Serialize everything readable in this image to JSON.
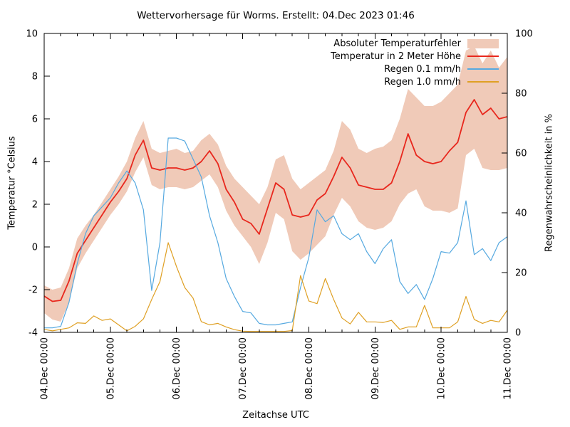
{
  "chart_data": {
    "type": "line",
    "title": "Wettervorhersage für Worms. Erstellt: 04.Dec 2023 01:46",
    "legend_position": "top-right-inside",
    "grid": false,
    "x_unit": "hours since 04.Dec 2023 00:00 UTC",
    "x_range_hours": [
      0,
      168
    ],
    "x_step_hours": 3,
    "axes": {
      "x": {
        "label": "Zeitachse UTC",
        "major_tick_hours": 24,
        "minor_tick_hours": 6,
        "tick_labels": [
          "04.Dec 00:00",
          "05.Dec 00:00",
          "06.Dec 00:00",
          "07.Dec 00:00",
          "08.Dec 00:00",
          "09.Dec 00:00",
          "10.Dec 00:00",
          "11.Dec 00:00"
        ]
      },
      "y_left": {
        "label": "Temperatur °Celsius",
        "range": [
          -4,
          10
        ],
        "ticks": [
          -4,
          -2,
          0,
          2,
          4,
          6,
          8,
          10
        ]
      },
      "y_right": {
        "label": "Regenwahrscheinlichkeit in %",
        "range": [
          0,
          100
        ],
        "ticks": [
          0,
          20,
          40,
          60,
          80,
          100
        ]
      }
    },
    "series": [
      {
        "name": "Absoluter Temperaturfehler",
        "type": "band",
        "axis": "left",
        "color": "#f0cab8",
        "upper": [
          -1.8,
          -2.0,
          -1.9,
          -1.0,
          0.4,
          1.0,
          1.5,
          2.1,
          2.7,
          3.3,
          4.0,
          5.1,
          5.9,
          4.6,
          4.4,
          4.5,
          4.6,
          4.4,
          4.5,
          5.0,
          5.3,
          4.8,
          3.8,
          3.2,
          2.8,
          2.4,
          2.0,
          2.8,
          4.1,
          4.3,
          3.2,
          2.7,
          3.0,
          3.3,
          3.6,
          4.5,
          5.9,
          5.5,
          4.6,
          4.4,
          4.6,
          4.7,
          5.0,
          6.0,
          7.4,
          7.0,
          6.6,
          6.6,
          6.8,
          7.2,
          7.6,
          9.2,
          9.4,
          8.6,
          9.2,
          8.4,
          8.9
        ],
        "lower": [
          -3.1,
          -3.4,
          -3.5,
          -2.6,
          -1.0,
          -0.3,
          0.3,
          0.9,
          1.5,
          2.0,
          2.6,
          3.5,
          4.2,
          2.9,
          2.7,
          2.8,
          2.8,
          2.7,
          2.8,
          3.1,
          3.4,
          2.8,
          1.7,
          1.0,
          0.5,
          0.0,
          -0.8,
          0.2,
          1.6,
          1.3,
          -0.2,
          -0.6,
          -0.3,
          0.1,
          0.5,
          1.5,
          2.3,
          1.9,
          1.2,
          0.9,
          0.8,
          0.9,
          1.2,
          2.0,
          2.5,
          2.7,
          1.9,
          1.7,
          1.7,
          1.6,
          1.8,
          4.3,
          4.6,
          3.7,
          3.6,
          3.6,
          3.7
        ]
      },
      {
        "name": "Temperatur in 2 Meter Höhe",
        "type": "line",
        "axis": "left",
        "color": "#e8271d",
        "width": 1.8,
        "values": [
          -2.3,
          -2.55,
          -2.5,
          -1.6,
          -0.3,
          0.3,
          0.9,
          1.5,
          2.1,
          2.6,
          3.2,
          4.3,
          5.0,
          3.7,
          3.6,
          3.7,
          3.7,
          3.6,
          3.7,
          4.0,
          4.5,
          3.9,
          2.7,
          2.1,
          1.3,
          1.1,
          0.6,
          1.8,
          3.0,
          2.7,
          1.5,
          1.4,
          1.5,
          2.2,
          2.5,
          3.3,
          4.2,
          3.7,
          2.9,
          2.8,
          2.7,
          2.7,
          3.0,
          4.0,
          5.3,
          4.3,
          4.0,
          3.9,
          4.0,
          4.5,
          4.9,
          6.3,
          6.9,
          6.2,
          6.5,
          6.0,
          6.1
        ]
      },
      {
        "name": "Regen 0.1 mm/h",
        "type": "line",
        "axis": "right",
        "color": "#56a9e0",
        "width": 1.2,
        "values": [
          1.5,
          1.5,
          2,
          10,
          23,
          33,
          39,
          42,
          45,
          50,
          54,
          50,
          41,
          14,
          30,
          65,
          65,
          64,
          58,
          52,
          39,
          30,
          18,
          12,
          7,
          6.5,
          3,
          2.5,
          2.5,
          3,
          3.5,
          15,
          25,
          41,
          37,
          39,
          33,
          31,
          33,
          27,
          23,
          28,
          31,
          17,
          13,
          16,
          11,
          18,
          27,
          26.5,
          30,
          44,
          26,
          28,
          24,
          30,
          32
        ]
      },
      {
        "name": "Regen 1.0 mm/h",
        "type": "line",
        "axis": "right",
        "color": "#dfa024",
        "width": 1.2,
        "values": [
          1,
          0.5,
          1,
          1.5,
          3.2,
          3,
          5.5,
          4,
          4.5,
          2.5,
          0.5,
          2,
          4.5,
          11,
          17,
          30,
          22,
          15,
          11.5,
          3.6,
          2.5,
          3,
          1.8,
          0.9,
          0.4,
          0.3,
          0.3,
          0.3,
          0.3,
          0.3,
          0.6,
          19,
          10.5,
          9.6,
          18,
          11,
          4.8,
          2.8,
          6.7,
          3.5,
          3.5,
          3.3,
          4,
          1,
          1.8,
          1.8,
          9,
          1.5,
          1.5,
          1.5,
          3.5,
          12,
          4.3,
          3,
          4,
          3.5,
          7.4
        ]
      }
    ],
    "colors": {
      "background": "#ffffff",
      "border": "#000000",
      "text": "#000000"
    }
  }
}
